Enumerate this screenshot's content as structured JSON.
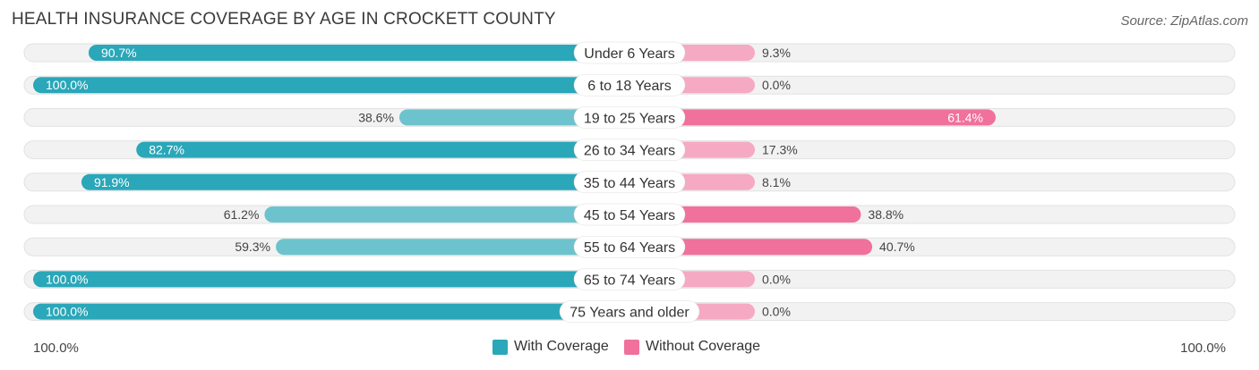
{
  "title": "HEALTH INSURANCE COVERAGE BY AGE IN CROCKETT COUNTY",
  "source": "Source: ZipAtlas.com",
  "colors": {
    "with_strong": "#2aa7b9",
    "with_light": "#6cc3cd",
    "without_strong": "#f0719b",
    "without_light": "#f6a9c2",
    "track": "#eeeeee"
  },
  "chart_data": {
    "type": "bar",
    "orientation": "horizontal-diverging",
    "title": "HEALTH INSURANCE COVERAGE BY AGE IN CROCKETT COUNTY",
    "categories": [
      "Under 6 Years",
      "6 to 18 Years",
      "19 to 25 Years",
      "26 to 34 Years",
      "35 to 44 Years",
      "45 to 54 Years",
      "55 to 64 Years",
      "65 to 74 Years",
      "75 Years and older"
    ],
    "series": [
      {
        "name": "With Coverage",
        "values": [
          90.7,
          100.0,
          38.6,
          82.7,
          91.9,
          61.2,
          59.3,
          100.0,
          100.0
        ],
        "labels": [
          "90.7%",
          "100.0%",
          "38.6%",
          "82.7%",
          "91.9%",
          "61.2%",
          "59.3%",
          "100.0%",
          "100.0%"
        ]
      },
      {
        "name": "Without Coverage",
        "values": [
          9.3,
          0.0,
          61.4,
          17.3,
          8.1,
          38.8,
          40.7,
          0.0,
          0.0
        ],
        "labels": [
          "9.3%",
          "0.0%",
          "61.4%",
          "17.3%",
          "8.1%",
          "38.8%",
          "40.7%",
          "0.0%",
          "0.0%"
        ]
      }
    ],
    "xlim": [
      -100,
      100
    ],
    "axis_labels": {
      "left": "100.0%",
      "right": "100.0%"
    },
    "legend": [
      "With Coverage",
      "Without Coverage"
    ],
    "legend_position": "bottom-center"
  }
}
